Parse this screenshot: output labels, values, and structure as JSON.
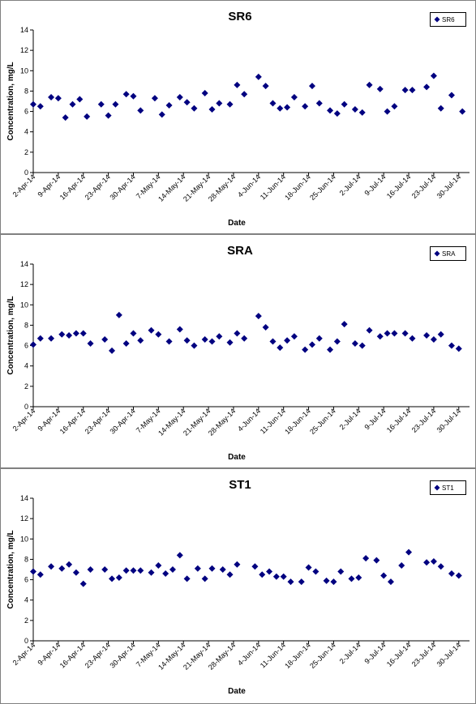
{
  "chart_data": [
    {
      "type": "scatter",
      "title": "SR6",
      "xlabel": "Date",
      "ylabel": "Concentration, mg/L",
      "ylim": [
        0,
        14
      ],
      "yticks": [
        0,
        2,
        4,
        6,
        8,
        10,
        12,
        14
      ],
      "xlim": [
        "2014-04-02",
        "2014-08-02"
      ],
      "xticks": [
        "2-Apr-14",
        "9-Apr-14",
        "16-Apr-14",
        "23-Apr-14",
        "30-Apr-14",
        "7-May-14",
        "14-May-14",
        "21-May-14",
        "28-May-14",
        "4-Jun-14",
        "11-Jun-14",
        "18-Jun-14",
        "25-Jun-14",
        "2-Jul-14",
        "9-Jul-14",
        "16-Jul-14",
        "23-Jul-14",
        "30-Jul-14"
      ],
      "grid": false,
      "legend": "top-right",
      "series": [
        {
          "name": "SR6",
          "color": "#000080",
          "x": [
            "2014-04-02",
            "2014-04-04",
            "2014-04-07",
            "2014-04-09",
            "2014-04-11",
            "2014-04-13",
            "2014-04-15",
            "2014-04-17",
            "2014-04-21",
            "2014-04-23",
            "2014-04-25",
            "2014-04-28",
            "2014-04-30",
            "2014-05-02",
            "2014-05-06",
            "2014-05-08",
            "2014-05-10",
            "2014-05-13",
            "2014-05-15",
            "2014-05-17",
            "2014-05-20",
            "2014-05-22",
            "2014-05-24",
            "2014-05-27",
            "2014-05-29",
            "2014-05-31",
            "2014-06-04",
            "2014-06-06",
            "2014-06-08",
            "2014-06-10",
            "2014-06-12",
            "2014-06-14",
            "2014-06-17",
            "2014-06-19",
            "2014-06-21",
            "2014-06-24",
            "2014-06-26",
            "2014-06-28",
            "2014-07-01",
            "2014-07-03",
            "2014-07-05",
            "2014-07-08",
            "2014-07-10",
            "2014-07-12",
            "2014-07-15",
            "2014-07-17",
            "2014-07-21",
            "2014-07-23",
            "2014-07-25",
            "2014-07-28",
            "2014-07-31"
          ],
          "y": [
            6.7,
            6.5,
            7.4,
            7.3,
            5.4,
            6.7,
            7.2,
            5.5,
            6.7,
            5.6,
            6.7,
            7.7,
            7.5,
            6.1,
            7.3,
            5.7,
            6.6,
            7.4,
            6.9,
            6.3,
            7.8,
            6.2,
            6.8,
            6.7,
            8.6,
            7.7,
            9.4,
            8.5,
            6.8,
            6.3,
            6.4,
            7.4,
            6.5,
            8.5,
            6.8,
            6.1,
            5.8,
            6.7,
            6.2,
            5.9,
            8.6,
            8.2,
            6.0,
            6.5,
            8.1,
            8.1,
            8.4,
            9.5,
            6.3,
            7.6,
            6.0
          ]
        }
      ]
    },
    {
      "type": "scatter",
      "title": "SRA",
      "xlabel": "Date",
      "ylabel": "Concentration, mg/L",
      "ylim": [
        0,
        14
      ],
      "yticks": [
        0,
        2,
        4,
        6,
        8,
        10,
        12,
        14
      ],
      "xlim": [
        "2014-04-02",
        "2014-08-02"
      ],
      "xticks": [
        "2-Apr-14",
        "9-Apr-14",
        "16-Apr-14",
        "23-Apr-14",
        "30-Apr-14",
        "7-May-14",
        "14-May-14",
        "21-May-14",
        "28-May-14",
        "4-Jun-14",
        "11-Jun-14",
        "18-Jun-14",
        "25-Jun-14",
        "2-Jul-14",
        "9-Jul-14",
        "16-Jul-14",
        "23-Jul-14",
        "30-Jul-14"
      ],
      "grid": false,
      "legend": "top-right",
      "series": [
        {
          "name": "SRA",
          "color": "#000080",
          "x": [
            "2014-04-02",
            "2014-04-04",
            "2014-04-07",
            "2014-04-10",
            "2014-04-12",
            "2014-04-14",
            "2014-04-16",
            "2014-04-18",
            "2014-04-22",
            "2014-04-24",
            "2014-04-26",
            "2014-04-28",
            "2014-04-30",
            "2014-05-02",
            "2014-05-05",
            "2014-05-07",
            "2014-05-10",
            "2014-05-13",
            "2014-05-15",
            "2014-05-17",
            "2014-05-20",
            "2014-05-22",
            "2014-05-24",
            "2014-05-27",
            "2014-05-29",
            "2014-05-31",
            "2014-06-04",
            "2014-06-06",
            "2014-06-08",
            "2014-06-10",
            "2014-06-12",
            "2014-06-14",
            "2014-06-17",
            "2014-06-19",
            "2014-06-21",
            "2014-06-24",
            "2014-06-26",
            "2014-06-28",
            "2014-07-01",
            "2014-07-03",
            "2014-07-05",
            "2014-07-08",
            "2014-07-10",
            "2014-07-12",
            "2014-07-15",
            "2014-07-17",
            "2014-07-21",
            "2014-07-23",
            "2014-07-25",
            "2014-07-28",
            "2014-07-30"
          ],
          "y": [
            6.1,
            6.7,
            6.7,
            7.1,
            7.0,
            7.2,
            7.2,
            6.2,
            6.6,
            5.5,
            9.0,
            6.2,
            7.2,
            6.5,
            7.5,
            7.1,
            6.4,
            7.6,
            6.5,
            6.0,
            6.6,
            6.4,
            6.9,
            6.3,
            7.2,
            6.7,
            8.9,
            7.8,
            6.4,
            5.8,
            6.5,
            6.9,
            5.6,
            6.1,
            6.7,
            5.6,
            6.4,
            8.1,
            6.2,
            6.0,
            7.5,
            6.9,
            7.2,
            7.2,
            7.2,
            6.7,
            7.0,
            6.6,
            7.1,
            6.0,
            5.7
          ]
        }
      ]
    },
    {
      "type": "scatter",
      "title": "ST1",
      "xlabel": "Date",
      "ylabel": "Concentration, mg/L",
      "ylim": [
        0,
        14
      ],
      "yticks": [
        0,
        2,
        4,
        6,
        8,
        10,
        12,
        14
      ],
      "xlim": [
        "2014-04-02",
        "2014-08-02"
      ],
      "xticks": [
        "2-Apr-14",
        "9-Apr-14",
        "16-Apr-14",
        "23-Apr-14",
        "30-Apr-14",
        "7-May-14",
        "14-May-14",
        "21-May-14",
        "28-May-14",
        "4-Jun-14",
        "11-Jun-14",
        "18-Jun-14",
        "25-Jun-14",
        "2-Jul-14",
        "9-Jul-14",
        "16-Jul-14",
        "23-Jul-14",
        "30-Jul-14"
      ],
      "grid": false,
      "legend": "top-right",
      "series": [
        {
          "name": "ST1",
          "color": "#000080",
          "x": [
            "2014-04-02",
            "2014-04-04",
            "2014-04-07",
            "2014-04-10",
            "2014-04-12",
            "2014-04-14",
            "2014-04-16",
            "2014-04-18",
            "2014-04-22",
            "2014-04-24",
            "2014-04-26",
            "2014-04-28",
            "2014-04-30",
            "2014-05-02",
            "2014-05-05",
            "2014-05-07",
            "2014-05-09",
            "2014-05-11",
            "2014-05-13",
            "2014-05-15",
            "2014-05-18",
            "2014-05-20",
            "2014-05-22",
            "2014-05-25",
            "2014-05-27",
            "2014-05-29",
            "2014-06-03",
            "2014-06-05",
            "2014-06-07",
            "2014-06-09",
            "2014-06-11",
            "2014-06-13",
            "2014-06-16",
            "2014-06-18",
            "2014-06-20",
            "2014-06-23",
            "2014-06-25",
            "2014-06-27",
            "2014-06-30",
            "2014-07-02",
            "2014-07-04",
            "2014-07-07",
            "2014-07-09",
            "2014-07-11",
            "2014-07-14",
            "2014-07-16",
            "2014-07-21",
            "2014-07-23",
            "2014-07-25",
            "2014-07-28",
            "2014-07-30"
          ],
          "y": [
            6.8,
            6.5,
            7.3,
            7.1,
            7.5,
            6.7,
            5.6,
            7.0,
            7.0,
            6.1,
            6.2,
            6.9,
            6.9,
            6.9,
            6.7,
            7.4,
            6.6,
            7.0,
            8.4,
            6.1,
            7.1,
            6.1,
            7.1,
            7.0,
            6.5,
            7.5,
            7.3,
            6.5,
            6.8,
            6.3,
            6.3,
            5.8,
            5.8,
            7.2,
            6.8,
            5.9,
            5.8,
            6.8,
            6.1,
            6.2,
            8.1,
            7.9,
            6.4,
            5.8,
            7.4,
            8.7,
            7.7,
            7.8,
            7.3,
            6.6,
            6.4
          ]
        }
      ]
    }
  ]
}
